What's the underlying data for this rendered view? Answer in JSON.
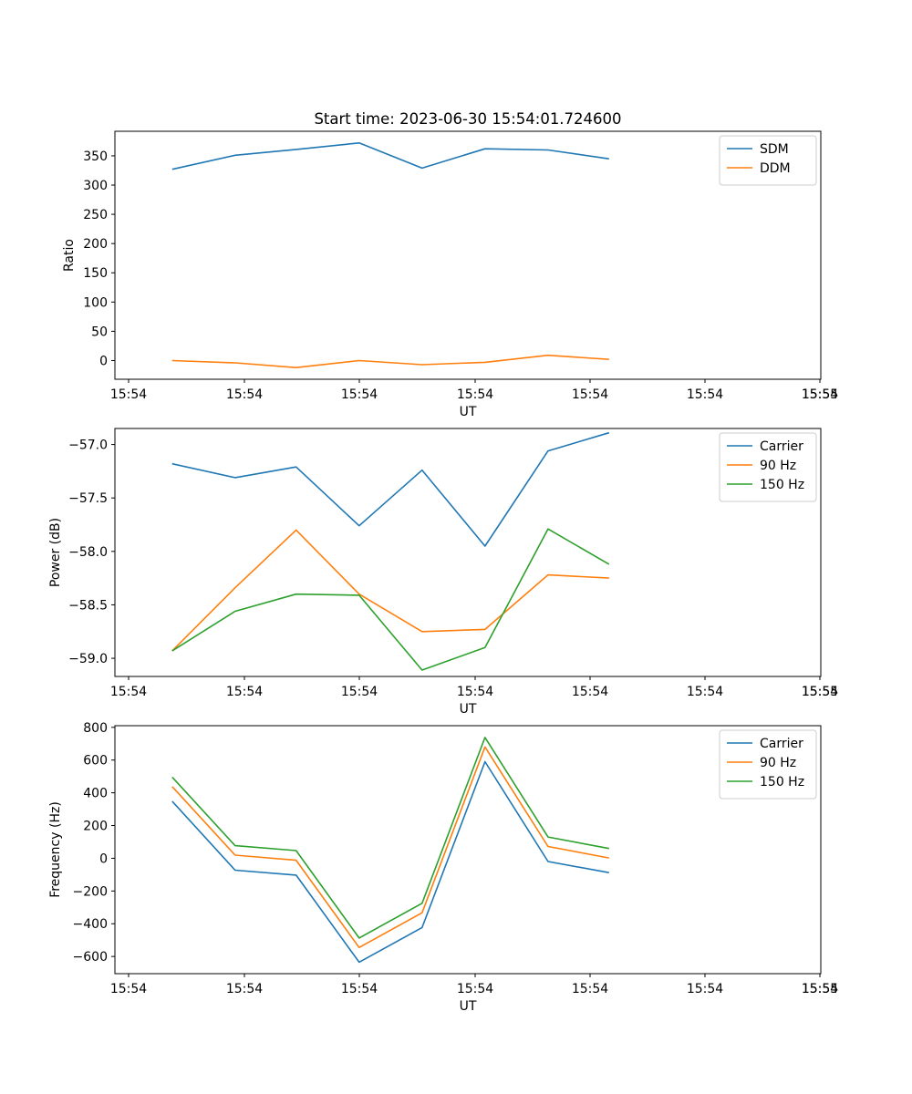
{
  "figure": {
    "title": "Start time: 2023-06-30 15:54:01.724600"
  },
  "chart_data": [
    {
      "type": "line",
      "xlabel": "UT",
      "ylabel": "Ratio",
      "xlim": [
        0,
        37
      ],
      "ylim": [
        -32,
        392
      ],
      "xticks": [
        1,
        8,
        15,
        22,
        29,
        36
      ],
      "xtick_labels": [
        "15:54",
        "15:54",
        "15:54",
        "15:54",
        "15:54",
        "15:54",
        "15:54",
        "15:55"
      ],
      "xtick_values": [
        0.5,
        5,
        10,
        15,
        20,
        25,
        30,
        35.5
      ],
      "yticks": [
        0,
        50,
        100,
        150,
        200,
        250,
        300,
        350
      ],
      "ytick_labels": [
        "0",
        "50",
        "100",
        "150",
        "200",
        "250",
        "300",
        "350"
      ],
      "x": [
        3.0,
        6.3,
        9.5,
        12.8,
        16.1,
        19.4,
        22.7,
        25.9
      ],
      "series": [
        {
          "name": "SDM",
          "color": "#1f77b4",
          "values": [
            327,
            351,
            361,
            372,
            329,
            362,
            360,
            345
          ]
        },
        {
          "name": "DDM",
          "color": "#ff7f0e",
          "values": [
            0,
            -4,
            -12,
            0,
            -7,
            -3,
            9,
            2
          ]
        }
      ],
      "legend": "top-right"
    },
    {
      "type": "line",
      "xlabel": "UT",
      "ylabel": "Power (dB)",
      "xlim": [
        0,
        37
      ],
      "ylim": [
        -59.17,
        -56.85
      ],
      "xtick_labels": [
        "15:54",
        "15:54",
        "15:54",
        "15:54",
        "15:54",
        "15:54",
        "15:54",
        "15:55"
      ],
      "xtick_values": [
        0.5,
        5,
        10,
        15,
        20,
        25,
        30,
        35.5
      ],
      "yticks": [
        -59.0,
        -58.5,
        -58.0,
        -57.5,
        -57.0
      ],
      "ytick_labels": [
        "−59.0",
        "−58.5",
        "−58.0",
        "−57.5",
        "−57.0"
      ],
      "x": [
        3.0,
        6.3,
        9.5,
        12.8,
        16.1,
        19.4,
        22.7,
        25.9
      ],
      "series": [
        {
          "name": "Carrier",
          "color": "#1f77b4",
          "values": [
            -57.18,
            -57.31,
            -57.21,
            -57.76,
            -57.24,
            -57.95,
            -57.06,
            -56.89
          ]
        },
        {
          "name": "90 Hz",
          "color": "#ff7f0e",
          "values": [
            -58.93,
            -58.34,
            -57.8,
            -58.4,
            -58.75,
            -58.73,
            -58.22,
            -58.25
          ]
        },
        {
          "name": "150 Hz",
          "color": "#2ca02c",
          "values": [
            -58.93,
            -58.56,
            -58.4,
            -58.41,
            -59.11,
            -58.9,
            -57.79,
            -58.12
          ]
        }
      ],
      "legend": "top-right"
    },
    {
      "type": "line",
      "xlabel": "UT",
      "ylabel": "Frequency (Hz)",
      "xlim": [
        0,
        37
      ],
      "ylim": [
        -705,
        810
      ],
      "xtick_labels": [
        "15:54",
        "15:54",
        "15:54",
        "15:54",
        "15:54",
        "15:54",
        "15:54",
        "15:55"
      ],
      "xtick_values": [
        0.5,
        5,
        10,
        15,
        20,
        25,
        30,
        35.5
      ],
      "yticks": [
        -600,
        -400,
        -200,
        0,
        200,
        400,
        600,
        800
      ],
      "ytick_labels": [
        "−600",
        "−400",
        "−200",
        "0",
        "200",
        "400",
        "600",
        "800"
      ],
      "x": [
        3.0,
        6.3,
        9.5,
        12.8,
        16.1,
        19.4,
        22.7,
        25.9
      ],
      "series": [
        {
          "name": "Carrier",
          "color": "#1f77b4",
          "values": [
            348,
            -73,
            -103,
            -635,
            -423,
            590,
            -20,
            -88
          ]
        },
        {
          "name": "90 Hz",
          "color": "#ff7f0e",
          "values": [
            438,
            19,
            -12,
            -545,
            -333,
            680,
            72,
            2
          ]
        },
        {
          "name": "150 Hz",
          "color": "#2ca02c",
          "values": [
            496,
            77,
            47,
            -487,
            -275,
            738,
            130,
            60
          ]
        }
      ],
      "legend": "top-right"
    }
  ]
}
